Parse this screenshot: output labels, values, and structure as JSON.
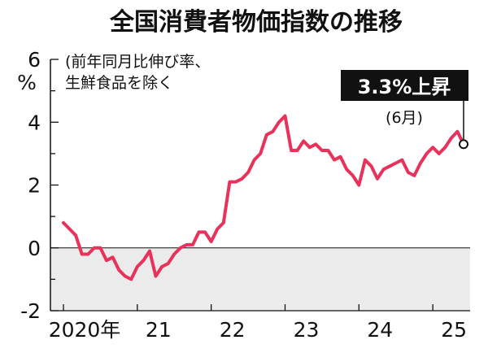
{
  "colors": {
    "line": "#e8325a",
    "negative_band": "#ebebeb",
    "axis": "#111111",
    "callout_bg": "#111111"
  },
  "chart_data": {
    "type": "line",
    "title": "全国消費者物価指数の推移",
    "ylabel_unit": "%",
    "note_lines": [
      "(前年同月比伸び率、",
      "生鮮食品を除く"
    ],
    "ylim": [
      -2,
      6
    ],
    "y_ticks": [
      -2,
      0,
      2,
      4,
      6
    ],
    "x_labels": [
      {
        "label": "2020年",
        "date": "2020-01"
      },
      {
        "label": "21",
        "date": "2021-01"
      },
      {
        "label": "22",
        "date": "2022-01"
      },
      {
        "label": "23",
        "date": "2023-01"
      },
      {
        "label": "24",
        "date": "2024-01"
      },
      {
        "label": "25",
        "date": "2025-01"
      }
    ],
    "x_start": "2020-01",
    "x_end": "2025-06",
    "negative_region_shaded": true,
    "series": [
      {
        "x": [
          "2020-01",
          "2020-02",
          "2020-03",
          "2020-04",
          "2020-05",
          "2020-06",
          "2020-07",
          "2020-08",
          "2020-09",
          "2020-10",
          "2020-11",
          "2020-12",
          "2021-01",
          "2021-02",
          "2021-03",
          "2021-04",
          "2021-05",
          "2021-06",
          "2021-07",
          "2021-08",
          "2021-09",
          "2021-10",
          "2021-11",
          "2021-12",
          "2022-01",
          "2022-02",
          "2022-03",
          "2022-04",
          "2022-05",
          "2022-06",
          "2022-07",
          "2022-08",
          "2022-09",
          "2022-10",
          "2022-11",
          "2022-12",
          "2023-01",
          "2023-02",
          "2023-03",
          "2023-04",
          "2023-05",
          "2023-06",
          "2023-07",
          "2023-08",
          "2023-09",
          "2023-10",
          "2023-11",
          "2023-12",
          "2024-01",
          "2024-02",
          "2024-03",
          "2024-04",
          "2024-05",
          "2024-06",
          "2024-07",
          "2024-08",
          "2024-09",
          "2024-10",
          "2024-11",
          "2024-12",
          "2025-01",
          "2025-02",
          "2025-03",
          "2025-04",
          "2025-05",
          "2025-06"
        ],
        "values": [
          0.8,
          0.6,
          0.4,
          -0.2,
          -0.2,
          0.0,
          0.0,
          -0.4,
          -0.3,
          -0.7,
          -0.9,
          -1.0,
          -0.6,
          -0.4,
          -0.1,
          -0.9,
          -0.6,
          -0.5,
          -0.2,
          0.0,
          0.1,
          0.1,
          0.5,
          0.5,
          0.2,
          0.6,
          0.8,
          2.1,
          2.1,
          2.2,
          2.4,
          2.8,
          3.0,
          3.6,
          3.7,
          4.0,
          4.2,
          3.1,
          3.1,
          3.4,
          3.2,
          3.3,
          3.1,
          3.1,
          2.8,
          2.9,
          2.5,
          2.3,
          2.0,
          2.8,
          2.6,
          2.2,
          2.5,
          2.6,
          2.7,
          2.8,
          2.4,
          2.3,
          2.7,
          3.0,
          3.2,
          3.0,
          3.2,
          3.5,
          3.7,
          3.3
        ]
      }
    ],
    "callout": {
      "value": "3.3%上昇",
      "sub": "(6月)"
    }
  }
}
